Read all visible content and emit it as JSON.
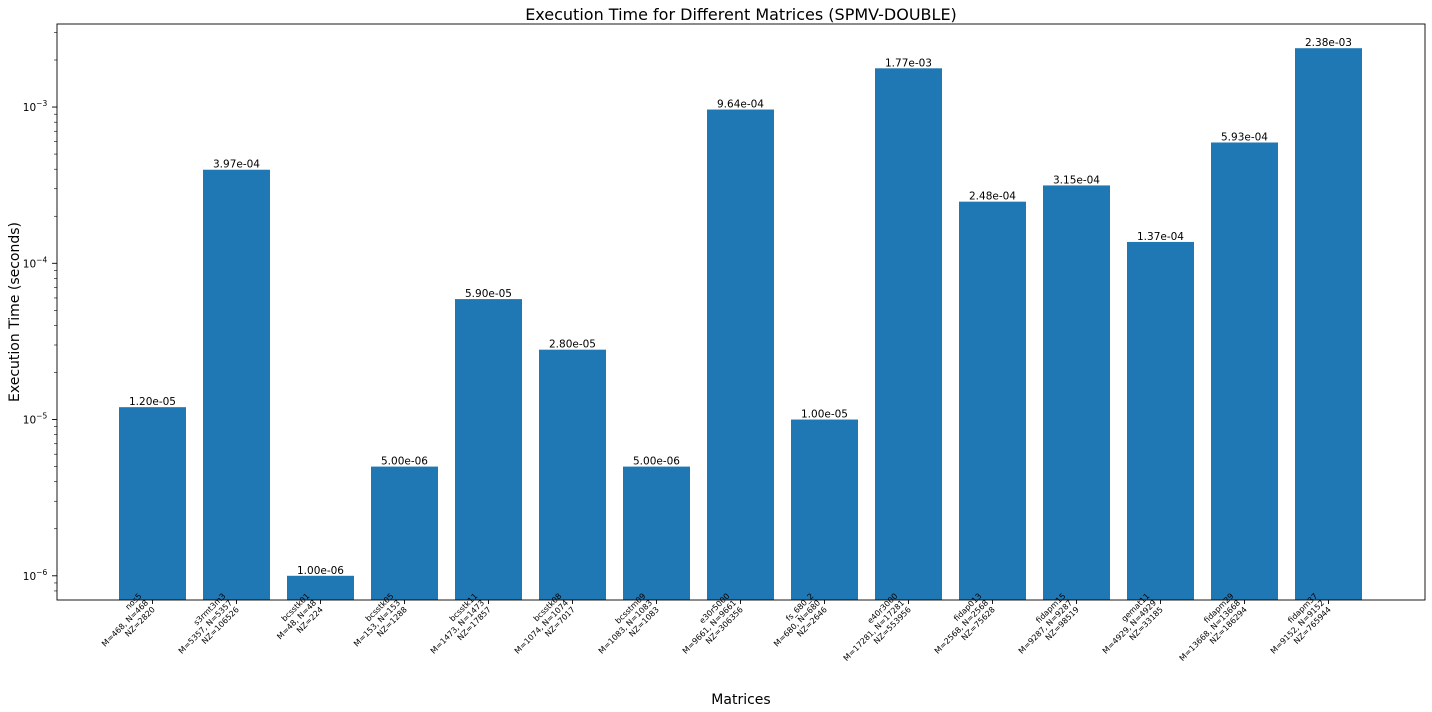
{
  "chart_data": {
    "type": "bar",
    "title": "Execution Time for Different Matrices (SPMV-DOUBLE)",
    "xlabel": "Matrices",
    "ylabel": "Execution Time (seconds)",
    "yscale": "log",
    "ylim": [
      7e-07,
      0.0034
    ],
    "y_major_ticks": [
      {
        "value": 1e-06,
        "base": "10",
        "exp": "−6"
      },
      {
        "value": 1e-05,
        "base": "10",
        "exp": "−5"
      },
      {
        "value": 0.0001,
        "base": "10",
        "exp": "−4"
      },
      {
        "value": 0.001,
        "base": "10",
        "exp": "−3"
      }
    ],
    "grid": false,
    "legend": "none",
    "color": "#1f77b4",
    "categories": [
      {
        "lines": [
          "nos5",
          "M=468, N=468",
          "NZ=2820"
        ]
      },
      {
        "lines": [
          "s3rmt3m3",
          "M=5357, N=5357",
          "NZ=106526"
        ]
      },
      {
        "lines": [
          "bcsstk01",
          "M=48, N=48",
          "NZ=224"
        ]
      },
      {
        "lines": [
          "bcsstk05",
          "M=153, N=153",
          "NZ=1288"
        ]
      },
      {
        "lines": [
          "bcsstk11",
          "M=1473, N=1473",
          "NZ=17857"
        ]
      },
      {
        "lines": [
          "bcsstk08",
          "M=1074, N=1074",
          "NZ=7017"
        ]
      },
      {
        "lines": [
          "bcsstm09",
          "M=1083, N=1083",
          "NZ=1083"
        ]
      },
      {
        "lines": [
          "e30r5000",
          "M=9661, N=9661",
          "NZ=306356"
        ]
      },
      {
        "lines": [
          "fs_680_2",
          "M=680, N=680",
          "NZ=2646"
        ]
      },
      {
        "lines": [
          "e40r3000",
          "M=17281, N=17281",
          "NZ=553956"
        ]
      },
      {
        "lines": [
          "fidap013",
          "M=2568, N=2568",
          "NZ=75628"
        ]
      },
      {
        "lines": [
          "fidapm15",
          "M=9287, N=9287",
          "NZ=98519"
        ]
      },
      {
        "lines": [
          "gemat11",
          "M=4929, N=4929",
          "NZ=33185"
        ]
      },
      {
        "lines": [
          "fidapm29",
          "M=13668, N=13668",
          "NZ=186294"
        ]
      },
      {
        "lines": [
          "fidapm37",
          "M=9152, N=9152",
          "NZ=765944"
        ]
      }
    ],
    "values": [
      1.2e-05,
      0.000397,
      1e-06,
      5e-06,
      5.9e-05,
      2.8e-05,
      5e-06,
      0.000964,
      1e-05,
      0.00177,
      0.000248,
      0.000315,
      0.000137,
      0.000593,
      0.00238
    ],
    "value_labels": [
      "1.20e-05",
      "3.97e-04",
      "1.00e-06",
      "5.00e-06",
      "5.90e-05",
      "2.80e-05",
      "5.00e-06",
      "9.64e-04",
      "1.00e-05",
      "1.77e-03",
      "2.48e-04",
      "3.15e-04",
      "1.37e-04",
      "5.93e-04",
      "2.38e-03"
    ]
  }
}
